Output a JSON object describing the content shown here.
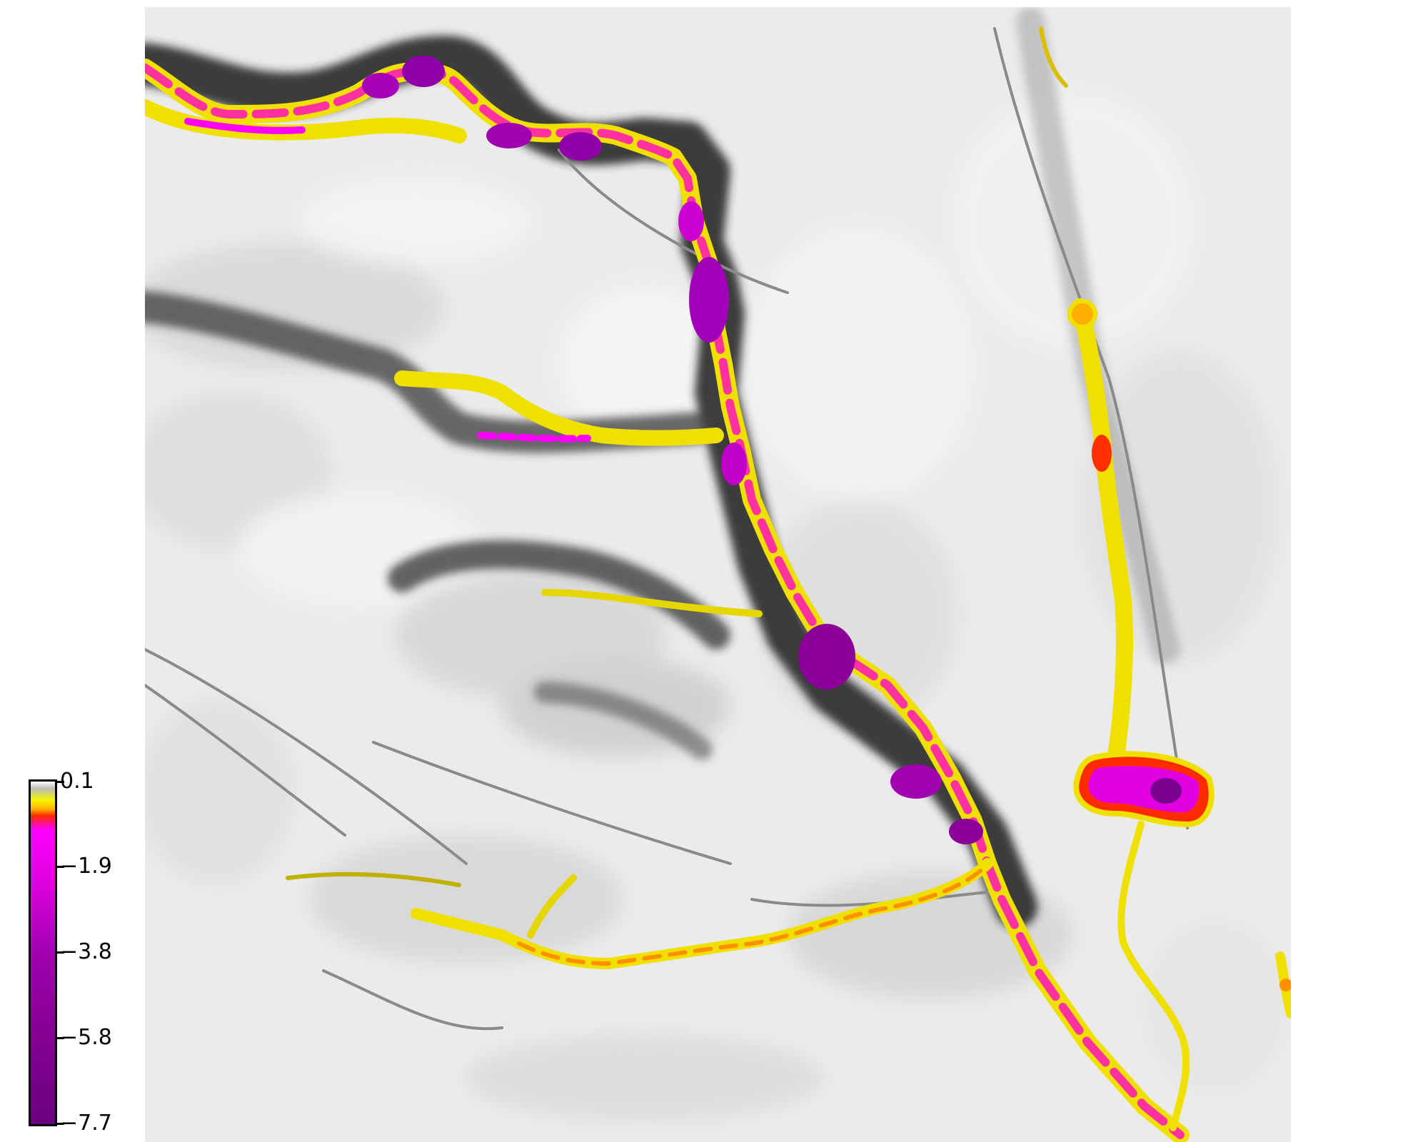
{
  "colorbar": {
    "min": -7.7,
    "max": 0.1,
    "labels": [
      "0.1",
      "−1.9",
      "−3.8",
      "−5.8",
      "−7.7"
    ],
    "colors": [
      "#ffffff",
      "#bdbdbd",
      "#f6f600",
      "#ffb000",
      "#ff2a00",
      "#ff00ff",
      "#dd00dd",
      "#a000b0",
      "#6a0080"
    ]
  },
  "map": {
    "background": "grayscale shaded relief",
    "overlay": "colour-coded river channel values"
  }
}
